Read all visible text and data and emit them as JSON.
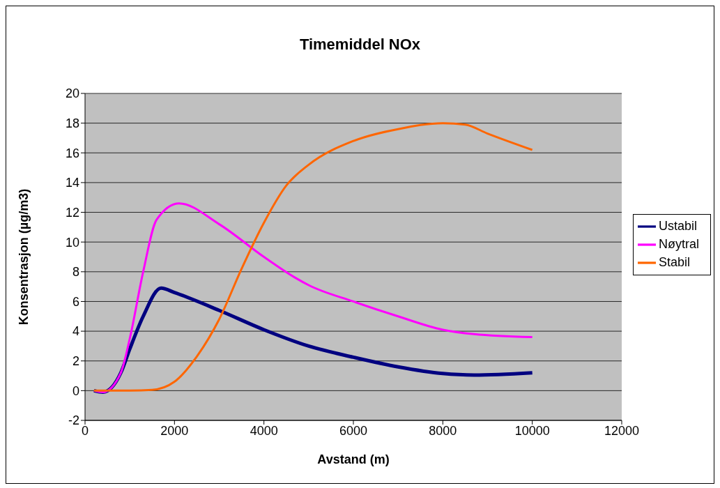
{
  "chart_data": {
    "type": "line",
    "title": "Timemiddel NOx",
    "xlabel": "Avstand (m)",
    "ylabel": "Konsentrasjon (µg/m3)",
    "xlim": [
      0,
      12000
    ],
    "xticks": [
      0,
      2000,
      4000,
      6000,
      8000,
      10000,
      12000
    ],
    "ylim": [
      -2,
      20
    ],
    "yticks": [
      -2,
      0,
      2,
      4,
      6,
      8,
      10,
      12,
      14,
      16,
      18,
      20
    ],
    "grid": "y",
    "legend": "right",
    "marker": "none",
    "line_style": "solid",
    "series": [
      {
        "name": "Ustabil",
        "color": "#000080",
        "x": [
          200,
          400,
          800,
          1000,
          1300,
          1700,
          2000,
          3000,
          4000,
          5000,
          6000,
          7000,
          8000,
          8700,
          10000
        ],
        "values": [
          0,
          -0.1,
          1.2,
          2.8,
          5,
          6.9,
          6.6,
          5.4,
          4.1,
          3.0,
          2.25,
          1.6,
          1.15,
          1.05,
          1.2
        ]
      },
      {
        "name": "Nøytral",
        "color": "#ff00ff",
        "x": [
          200,
          400,
          800,
          1000,
          1300,
          1600,
          2100,
          3000,
          4000,
          4700,
          5000,
          6000,
          7000,
          8000,
          8700,
          10000
        ],
        "values": [
          0,
          -0.1,
          1.2,
          3.5,
          8,
          11.5,
          12.6,
          11.2,
          9.0,
          7.6,
          7.1,
          6.0,
          5.0,
          4.1,
          3.8,
          3.6
        ]
      },
      {
        "name": "Stabil",
        "color": "#ff6600",
        "x": [
          200,
          1000,
          1500,
          2000,
          2500,
          3000,
          3500,
          4000,
          4500,
          5000,
          6000,
          7000,
          8000,
          8500,
          9000,
          10000
        ],
        "values": [
          0,
          0,
          0.05,
          0.6,
          2.3,
          4.8,
          8.2,
          11.3,
          13.8,
          15.2,
          16.8,
          17.6,
          18,
          17.9,
          17.3,
          16.2
        ]
      }
    ]
  }
}
